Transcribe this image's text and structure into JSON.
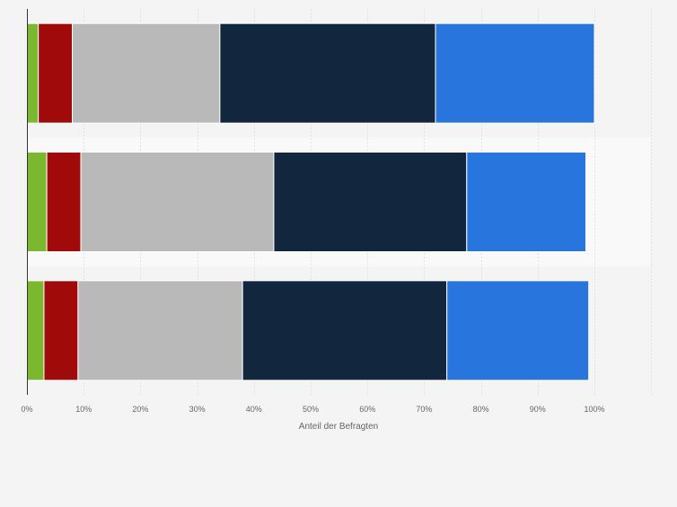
{
  "chart_data": {
    "type": "bar",
    "orientation": "horizontal",
    "stacked": true,
    "title": "",
    "xlabel": "Anteil der Befragten",
    "ylabel": "",
    "xlim": [
      0,
      100
    ],
    "x_ticks": [
      0,
      10,
      20,
      30,
      40,
      50,
      60,
      70,
      80,
      90,
      100
    ],
    "x_tick_labels": [
      "0%",
      "10%",
      "20%",
      "30%",
      "40%",
      "50%",
      "60%",
      "70%",
      "80%",
      "90%",
      "100%"
    ],
    "categories": [
      "",
      "",
      ""
    ],
    "grid": true,
    "legend": "none",
    "series": [
      {
        "color": "#7cb82f",
        "values": [
          2,
          3.5,
          3
        ]
      },
      {
        "color": "#a10a0a",
        "values": [
          6,
          6,
          6
        ]
      },
      {
        "color": "#b9b9b9",
        "values": [
          26,
          34,
          29
        ]
      },
      {
        "color": "#12263d",
        "values": [
          38,
          34,
          36
        ]
      },
      {
        "color": "#2876dd",
        "values": [
          28,
          21,
          25
        ]
      }
    ]
  }
}
